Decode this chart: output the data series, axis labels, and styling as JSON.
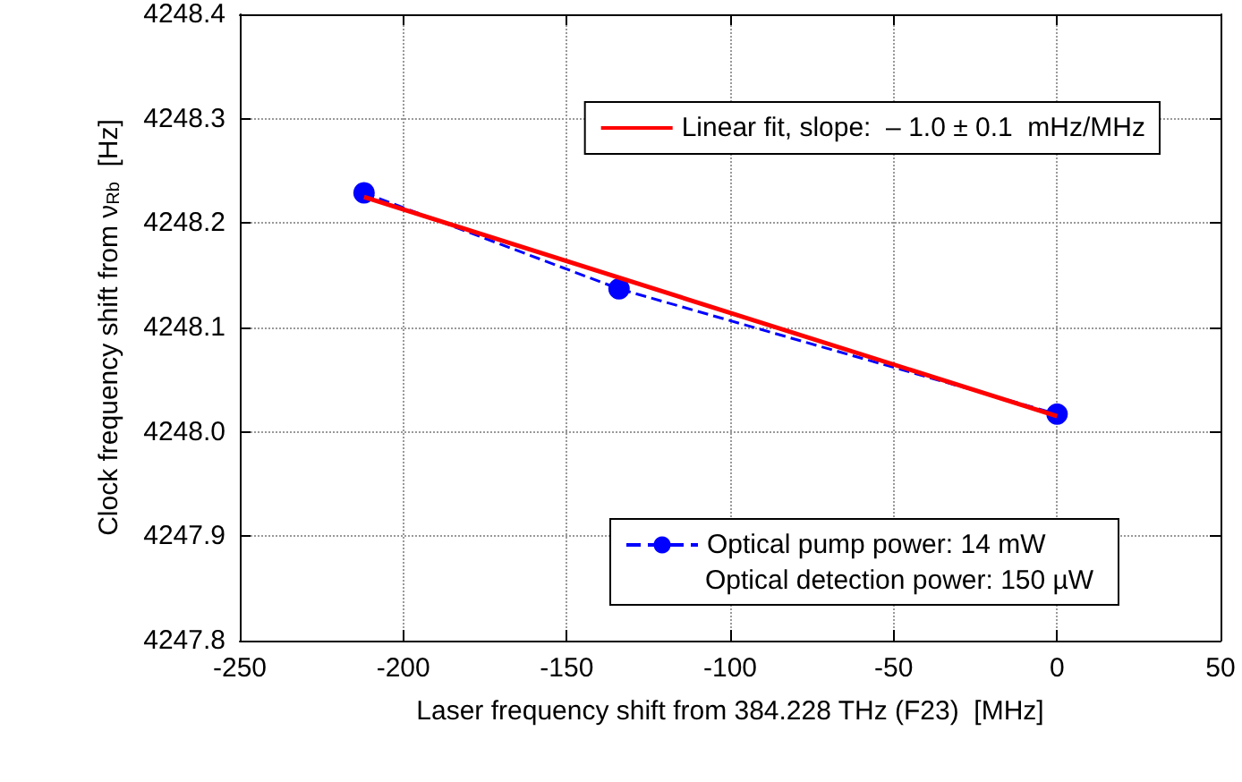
{
  "chart_data": {
    "type": "line",
    "xlabel": "Laser frequency shift from 384.228 THz (F23)  [MHz]",
    "ylabel": "Clock frequency shift from ν$_{Rb}$  [Hz]",
    "xlim": [
      -250,
      50
    ],
    "xticks": [
      -250,
      -200,
      -150,
      -100,
      -50,
      0,
      50
    ],
    "ylim": [
      4247.8,
      4248.4
    ],
    "yticks": [
      {
        "value": 4247.8,
        "label": "4247.8"
      },
      {
        "value": 4247.9,
        "label": "4247.9"
      },
      {
        "value": 4248.0,
        "label": "4248.0"
      },
      {
        "value": 4248.1,
        "label": "4248.1"
      },
      {
        "value": 4248.2,
        "label": "4248.2"
      },
      {
        "value": 4248.3,
        "label": "4248.3"
      },
      {
        "value": 4248.4,
        "label": "4248.4"
      }
    ],
    "grid": true,
    "legend": "right",
    "annotations": [
      "Optical detection power: 150 µW"
    ],
    "series": [
      {
        "name": "Optical pump power: 14 mW",
        "color": "#0000ff",
        "marker": "circle",
        "line_style": "dashed",
        "x": [
          -212,
          -134,
          0
        ],
        "values": [
          4248.229,
          4248.137,
          4248.017
        ]
      },
      {
        "name": "Linear fit, slope:  – 1.0 ± 0.1  mHz/MHz",
        "type": "line",
        "color": "#ff0000",
        "marker": "none",
        "line_style": "solid",
        "x": [
          -212,
          0
        ],
        "values": [
          4248.225,
          4248.015
        ]
      }
    ]
  }
}
